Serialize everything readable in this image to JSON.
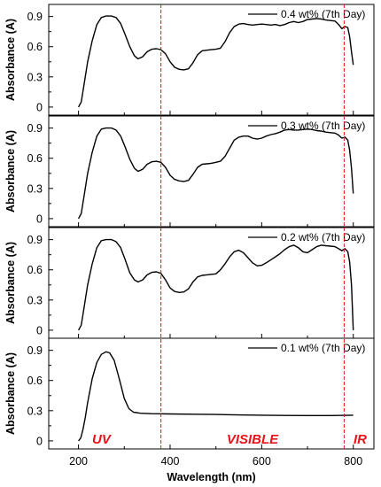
{
  "chart_data": {
    "type": "line",
    "layout": "stacked-panels",
    "xlabel": "Wavelength (nm)",
    "xlim": [
      135,
      845
    ],
    "x_ticks": [
      200,
      400,
      600,
      800
    ],
    "markers": [
      {
        "x": 380,
        "color": "#e8141b",
        "style": "dashed"
      },
      {
        "x": 780,
        "color": "#e8141b",
        "style": "dashed"
      }
    ],
    "region_labels": [
      {
        "label": "UV",
        "x": 250
      },
      {
        "label": "VISIBLE",
        "x": 580
      },
      {
        "label": "IR",
        "x": 815
      }
    ],
    "panels": [
      {
        "ylabel": "Absorbance (A)",
        "ylim": [
          -0.08,
          1.02
        ],
        "y_ticks": [
          "0",
          "0.3",
          "0.6",
          "0.9"
        ],
        "y_tick_values": [
          0,
          0.3,
          0.6,
          0.9
        ],
        "series": [
          {
            "name": "0.4 wt% (7th Day)",
            "color": "#000000",
            "points": [
              [
                200,
                0.0
              ],
              [
                206,
                0.05
              ],
              [
                212,
                0.22
              ],
              [
                220,
                0.45
              ],
              [
                230,
                0.66
              ],
              [
                240,
                0.82
              ],
              [
                250,
                0.89
              ],
              [
                260,
                0.905
              ],
              [
                272,
                0.905
              ],
              [
                282,
                0.89
              ],
              [
                292,
                0.83
              ],
              [
                302,
                0.72
              ],
              [
                312,
                0.6
              ],
              [
                322,
                0.51
              ],
              [
                330,
                0.48
              ],
              [
                340,
                0.5
              ],
              [
                350,
                0.55
              ],
              [
                360,
                0.575
              ],
              [
                370,
                0.58
              ],
              [
                380,
                0.57
              ],
              [
                390,
                0.53
              ],
              [
                400,
                0.45
              ],
              [
                410,
                0.395
              ],
              [
                420,
                0.375
              ],
              [
                430,
                0.37
              ],
              [
                440,
                0.38
              ],
              [
                450,
                0.44
              ],
              [
                460,
                0.52
              ],
              [
                470,
                0.56
              ],
              [
                480,
                0.565
              ],
              [
                490,
                0.57
              ],
              [
                500,
                0.575
              ],
              [
                510,
                0.585
              ],
              [
                520,
                0.65
              ],
              [
                530,
                0.74
              ],
              [
                540,
                0.8
              ],
              [
                550,
                0.825
              ],
              [
                560,
                0.83
              ],
              [
                570,
                0.82
              ],
              [
                580,
                0.815
              ],
              [
                590,
                0.82
              ],
              [
                600,
                0.825
              ],
              [
                610,
                0.82
              ],
              [
                620,
                0.815
              ],
              [
                630,
                0.82
              ],
              [
                640,
                0.81
              ],
              [
                650,
                0.82
              ],
              [
                660,
                0.84
              ],
              [
                670,
                0.85
              ],
              [
                680,
                0.84
              ],
              [
                690,
                0.85
              ],
              [
                700,
                0.87
              ],
              [
                710,
                0.875
              ],
              [
                720,
                0.88
              ],
              [
                730,
                0.875
              ],
              [
                740,
                0.865
              ],
              [
                750,
                0.86
              ],
              [
                760,
                0.855
              ],
              [
                768,
                0.82
              ],
              [
                775,
                0.78
              ],
              [
                782,
                0.8
              ],
              [
                788,
                0.79
              ],
              [
                792,
                0.7
              ],
              [
                796,
                0.55
              ],
              [
                800,
                0.42
              ]
            ]
          }
        ]
      },
      {
        "ylabel": "Absorbance (A)",
        "ylim": [
          -0.08,
          1.02
        ],
        "y_ticks": [
          "0",
          "0.3",
          "0.6",
          "0.9"
        ],
        "y_tick_values": [
          0,
          0.3,
          0.6,
          0.9
        ],
        "series": [
          {
            "name": "0.3 wt% (7th Day)",
            "color": "#000000",
            "points": [
              [
                200,
                0.0
              ],
              [
                206,
                0.05
              ],
              [
                212,
                0.22
              ],
              [
                220,
                0.45
              ],
              [
                230,
                0.66
              ],
              [
                240,
                0.82
              ],
              [
                250,
                0.89
              ],
              [
                260,
                0.9
              ],
              [
                272,
                0.9
              ],
              [
                282,
                0.88
              ],
              [
                292,
                0.82
              ],
              [
                302,
                0.71
              ],
              [
                312,
                0.59
              ],
              [
                322,
                0.5
              ],
              [
                330,
                0.47
              ],
              [
                340,
                0.49
              ],
              [
                350,
                0.54
              ],
              [
                360,
                0.565
              ],
              [
                370,
                0.57
              ],
              [
                380,
                0.56
              ],
              [
                390,
                0.51
              ],
              [
                400,
                0.43
              ],
              [
                410,
                0.39
              ],
              [
                420,
                0.375
              ],
              [
                430,
                0.37
              ],
              [
                440,
                0.38
              ],
              [
                450,
                0.44
              ],
              [
                460,
                0.51
              ],
              [
                470,
                0.54
              ],
              [
                480,
                0.545
              ],
              [
                490,
                0.55
              ],
              [
                500,
                0.56
              ],
              [
                510,
                0.57
              ],
              [
                520,
                0.62
              ],
              [
                530,
                0.7
              ],
              [
                540,
                0.78
              ],
              [
                550,
                0.81
              ],
              [
                560,
                0.82
              ],
              [
                570,
                0.82
              ],
              [
                580,
                0.8
              ],
              [
                590,
                0.79
              ],
              [
                600,
                0.8
              ],
              [
                610,
                0.82
              ],
              [
                620,
                0.835
              ],
              [
                630,
                0.845
              ],
              [
                640,
                0.86
              ],
              [
                650,
                0.88
              ],
              [
                660,
                0.885
              ],
              [
                670,
                0.88
              ],
              [
                680,
                0.88
              ],
              [
                690,
                0.885
              ],
              [
                700,
                0.89
              ],
              [
                710,
                0.885
              ],
              [
                720,
                0.875
              ],
              [
                730,
                0.87
              ],
              [
                740,
                0.86
              ],
              [
                750,
                0.855
              ],
              [
                760,
                0.85
              ],
              [
                768,
                0.83
              ],
              [
                775,
                0.8
              ],
              [
                782,
                0.81
              ],
              [
                788,
                0.78
              ],
              [
                792,
                0.68
              ],
              [
                796,
                0.5
              ],
              [
                800,
                0.25
              ]
            ]
          }
        ]
      },
      {
        "ylabel": "Absorbance (A)",
        "ylim": [
          -0.08,
          1.02
        ],
        "y_ticks": [
          "0",
          "0.3",
          "0.6",
          "0.9"
        ],
        "y_tick_values": [
          0,
          0.3,
          0.6,
          0.9
        ],
        "series": [
          {
            "name": "0.2 wt% (7th Day)",
            "color": "#000000",
            "points": [
              [
                200,
                0.0
              ],
              [
                206,
                0.05
              ],
              [
                212,
                0.22
              ],
              [
                220,
                0.45
              ],
              [
                230,
                0.66
              ],
              [
                240,
                0.82
              ],
              [
                250,
                0.89
              ],
              [
                260,
                0.9
              ],
              [
                272,
                0.9
              ],
              [
                282,
                0.88
              ],
              [
                292,
                0.82
              ],
              [
                302,
                0.7
              ],
              [
                312,
                0.57
              ],
              [
                322,
                0.5
              ],
              [
                330,
                0.48
              ],
              [
                340,
                0.5
              ],
              [
                350,
                0.55
              ],
              [
                360,
                0.575
              ],
              [
                370,
                0.58
              ],
              [
                380,
                0.565
              ],
              [
                390,
                0.5
              ],
              [
                400,
                0.42
              ],
              [
                410,
                0.385
              ],
              [
                420,
                0.375
              ],
              [
                430,
                0.38
              ],
              [
                440,
                0.41
              ],
              [
                450,
                0.48
              ],
              [
                460,
                0.53
              ],
              [
                470,
                0.545
              ],
              [
                480,
                0.55
              ],
              [
                490,
                0.555
              ],
              [
                500,
                0.56
              ],
              [
                510,
                0.6
              ],
              [
                520,
                0.66
              ],
              [
                530,
                0.73
              ],
              [
                540,
                0.78
              ],
              [
                550,
                0.795
              ],
              [
                560,
                0.77
              ],
              [
                570,
                0.72
              ],
              [
                580,
                0.67
              ],
              [
                590,
                0.64
              ],
              [
                600,
                0.645
              ],
              [
                610,
                0.67
              ],
              [
                620,
                0.7
              ],
              [
                630,
                0.73
              ],
              [
                640,
                0.76
              ],
              [
                650,
                0.8
              ],
              [
                660,
                0.83
              ],
              [
                670,
                0.845
              ],
              [
                680,
                0.82
              ],
              [
                690,
                0.78
              ],
              [
                700,
                0.77
              ],
              [
                710,
                0.8
              ],
              [
                720,
                0.83
              ],
              [
                730,
                0.845
              ],
              [
                740,
                0.84
              ],
              [
                750,
                0.835
              ],
              [
                760,
                0.83
              ],
              [
                768,
                0.81
              ],
              [
                775,
                0.79
              ],
              [
                782,
                0.81
              ],
              [
                788,
                0.78
              ],
              [
                792,
                0.68
              ],
              [
                796,
                0.45
              ],
              [
                800,
                0.0
              ]
            ]
          }
        ]
      },
      {
        "ylabel": "Absorbance (A)",
        "ylim": [
          -0.08,
          1.02
        ],
        "y_ticks": [
          "0",
          "0.3",
          "0.6",
          "0.9"
        ],
        "y_tick_values": [
          0,
          0.3,
          0.6,
          0.9
        ],
        "series": [
          {
            "name": "0.1 wt% (7th Day)",
            "color": "#000000",
            "points": [
              [
                200,
                0.0
              ],
              [
                205,
                0.03
              ],
              [
                210,
                0.12
              ],
              [
                215,
                0.24
              ],
              [
                220,
                0.38
              ],
              [
                230,
                0.62
              ],
              [
                240,
                0.78
              ],
              [
                250,
                0.86
              ],
              [
                260,
                0.885
              ],
              [
                268,
                0.875
              ],
              [
                278,
                0.8
              ],
              [
                290,
                0.6
              ],
              [
                300,
                0.42
              ],
              [
                310,
                0.32
              ],
              [
                320,
                0.285
              ],
              [
                335,
                0.275
              ],
              [
                360,
                0.27
              ],
              [
                400,
                0.268
              ],
              [
                450,
                0.265
              ],
              [
                500,
                0.262
              ],
              [
                550,
                0.258
              ],
              [
                600,
                0.255
              ],
              [
                650,
                0.253
              ],
              [
                700,
                0.252
              ],
              [
                750,
                0.252
              ],
              [
                800,
                0.255
              ]
            ]
          }
        ]
      }
    ]
  }
}
